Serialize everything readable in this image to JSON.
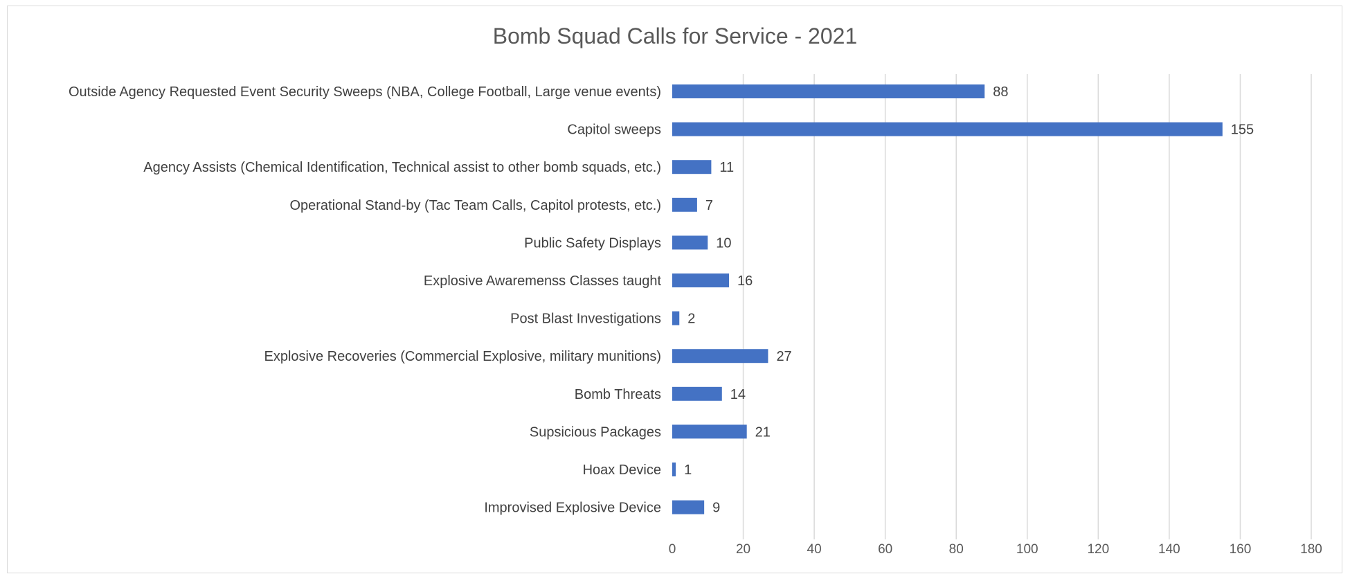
{
  "chart_data": {
    "type": "bar",
    "orientation": "horizontal",
    "title": "Bomb Squad Calls for Service - 2021",
    "xlabel": "",
    "ylabel": "",
    "categories": [
      "Outside Agency Requested Event Security Sweeps (NBA, College Football, Large venue events)",
      "Capitol sweeps",
      "Agency Assists (Chemical Identification, Technical assist to other bomb squads, etc.)",
      "Operational Stand-by (Tac Team Calls, Capitol protests, etc.)",
      "Public Safety Displays",
      "Explosive Awaremenss Classes taught",
      "Post Blast Investigations",
      "Explosive Recoveries (Commercial Explosive, military munitions)",
      "Bomb Threats",
      "Supsicious Packages",
      "Hoax Device",
      "Improvised Explosive Device"
    ],
    "values": [
      88,
      155,
      11,
      7,
      10,
      16,
      2,
      27,
      14,
      21,
      1,
      9
    ],
    "xlim": [
      0,
      180
    ],
    "xticks": [
      0,
      20,
      40,
      60,
      80,
      100,
      120,
      140,
      160,
      180
    ],
    "grid": "vertical",
    "legend": "none",
    "data_labels": true,
    "bar_color": "#4472c4"
  }
}
